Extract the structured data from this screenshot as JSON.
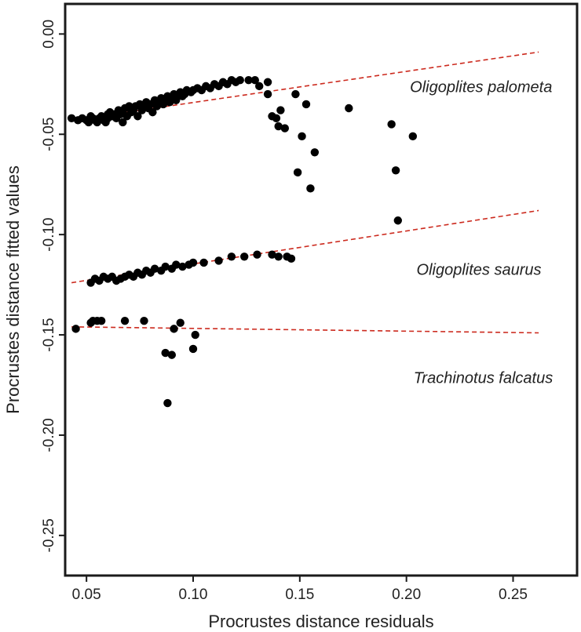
{
  "chart_data": {
    "type": "scatter",
    "xlabel": "Procrustes distance residuals",
    "ylabel": "Procrustes distance fitted values",
    "xlim": [
      0.04,
      0.28
    ],
    "ylim": [
      -0.27,
      0.015
    ],
    "x_ticks": [
      0.05,
      0.1,
      0.15,
      0.2,
      0.25
    ],
    "x_tick_labels": [
      "0.05",
      "0.10",
      "0.15",
      "0.20",
      "0.25"
    ],
    "y_ticks": [
      0.0,
      -0.05,
      -0.1,
      -0.15,
      -0.2,
      -0.25
    ],
    "y_tick_labels": [
      "0.00",
      "-0.05",
      "-0.10",
      "-0.15",
      "-0.20",
      "-0.25"
    ],
    "grid": false,
    "point_color": "#000000",
    "line_color": "#cc2a1e",
    "annotations": [
      {
        "text": "Oligoplites palometa",
        "x": 0.235,
        "y": -0.027
      },
      {
        "text": "Oligoplites saurus",
        "x": 0.234,
        "y": -0.118
      },
      {
        "text": "Trachinotus falcatus",
        "x": 0.236,
        "y": -0.172
      }
    ],
    "series": [
      {
        "points": [
          [
            0.043,
            -0.042
          ],
          [
            0.046,
            -0.043
          ],
          [
            0.048,
            -0.042
          ],
          [
            0.05,
            -0.043
          ],
          [
            0.051,
            -0.044
          ],
          [
            0.052,
            -0.041
          ],
          [
            0.053,
            -0.042
          ],
          [
            0.054,
            -0.043
          ],
          [
            0.055,
            -0.044
          ],
          [
            0.056,
            -0.042
          ],
          [
            0.057,
            -0.041
          ],
          [
            0.058,
            -0.043
          ],
          [
            0.059,
            -0.044
          ],
          [
            0.06,
            -0.04
          ],
          [
            0.06,
            -0.042
          ],
          [
            0.061,
            -0.039
          ],
          [
            0.062,
            -0.041
          ],
          [
            0.063,
            -0.04
          ],
          [
            0.064,
            -0.042
          ],
          [
            0.065,
            -0.038
          ],
          [
            0.066,
            -0.04
          ],
          [
            0.067,
            -0.044
          ],
          [
            0.067,
            -0.039
          ],
          [
            0.068,
            -0.037
          ],
          [
            0.069,
            -0.041
          ],
          [
            0.07,
            -0.036
          ],
          [
            0.071,
            -0.039
          ],
          [
            0.072,
            -0.038
          ],
          [
            0.073,
            -0.036
          ],
          [
            0.074,
            -0.041
          ],
          [
            0.075,
            -0.035
          ],
          [
            0.076,
            -0.038
          ],
          [
            0.077,
            -0.036
          ],
          [
            0.078,
            -0.034
          ],
          [
            0.079,
            -0.037
          ],
          [
            0.08,
            -0.035
          ],
          [
            0.081,
            -0.039
          ],
          [
            0.082,
            -0.033
          ],
          [
            0.083,
            -0.036
          ],
          [
            0.084,
            -0.034
          ],
          [
            0.085,
            -0.032
          ],
          [
            0.086,
            -0.035
          ],
          [
            0.087,
            -0.033
          ],
          [
            0.088,
            -0.031
          ],
          [
            0.089,
            -0.034
          ],
          [
            0.09,
            -0.032
          ],
          [
            0.091,
            -0.03
          ],
          [
            0.092,
            -0.033
          ],
          [
            0.093,
            -0.031
          ],
          [
            0.094,
            -0.029
          ],
          [
            0.095,
            -0.031
          ],
          [
            0.096,
            -0.03
          ],
          [
            0.097,
            -0.028
          ],
          [
            0.099,
            -0.029
          ],
          [
            0.1,
            -0.028
          ],
          [
            0.102,
            -0.027
          ],
          [
            0.104,
            -0.028
          ],
          [
            0.106,
            -0.026
          ],
          [
            0.108,
            -0.027
          ],
          [
            0.11,
            -0.025
          ],
          [
            0.112,
            -0.026
          ],
          [
            0.114,
            -0.024
          ],
          [
            0.116,
            -0.025
          ],
          [
            0.118,
            -0.023
          ],
          [
            0.12,
            -0.024
          ],
          [
            0.122,
            -0.023
          ],
          [
            0.126,
            -0.023
          ],
          [
            0.129,
            -0.023
          ],
          [
            0.131,
            -0.026
          ],
          [
            0.135,
            -0.024
          ],
          [
            0.135,
            -0.03
          ],
          [
            0.137,
            -0.041
          ],
          [
            0.139,
            -0.042
          ],
          [
            0.14,
            -0.046
          ],
          [
            0.141,
            -0.038
          ],
          [
            0.143,
            -0.047
          ],
          [
            0.148,
            -0.03
          ],
          [
            0.149,
            -0.069
          ],
          [
            0.151,
            -0.051
          ],
          [
            0.153,
            -0.035
          ],
          [
            0.155,
            -0.077
          ],
          [
            0.157,
            -0.059
          ],
          [
            0.173,
            -0.037
          ],
          [
            0.193,
            -0.045
          ],
          [
            0.195,
            -0.068
          ],
          [
            0.196,
            -0.093
          ],
          [
            0.203,
            -0.051
          ]
        ],
        "fit": [
          [
            0.043,
            -0.043
          ],
          [
            0.262,
            -0.009
          ]
        ]
      },
      {
        "points": [
          [
            0.052,
            -0.124
          ],
          [
            0.054,
            -0.122
          ],
          [
            0.056,
            -0.123
          ],
          [
            0.058,
            -0.121
          ],
          [
            0.06,
            -0.122
          ],
          [
            0.062,
            -0.121
          ],
          [
            0.064,
            -0.123
          ],
          [
            0.066,
            -0.122
          ],
          [
            0.068,
            -0.121
          ],
          [
            0.07,
            -0.12
          ],
          [
            0.072,
            -0.121
          ],
          [
            0.074,
            -0.119
          ],
          [
            0.076,
            -0.12
          ],
          [
            0.078,
            -0.118
          ],
          [
            0.08,
            -0.119
          ],
          [
            0.082,
            -0.117
          ],
          [
            0.085,
            -0.118
          ],
          [
            0.087,
            -0.116
          ],
          [
            0.09,
            -0.117
          ],
          [
            0.092,
            -0.115
          ],
          [
            0.095,
            -0.116
          ],
          [
            0.098,
            -0.115
          ],
          [
            0.1,
            -0.114
          ],
          [
            0.105,
            -0.114
          ],
          [
            0.112,
            -0.113
          ],
          [
            0.118,
            -0.111
          ],
          [
            0.124,
            -0.111
          ],
          [
            0.13,
            -0.11
          ],
          [
            0.137,
            -0.11
          ],
          [
            0.14,
            -0.111
          ],
          [
            0.144,
            -0.111
          ],
          [
            0.146,
            -0.112
          ]
        ],
        "fit": [
          [
            0.043,
            -0.124
          ],
          [
            0.262,
            -0.088
          ]
        ]
      },
      {
        "points": [
          [
            0.045,
            -0.147
          ],
          [
            0.052,
            -0.144
          ],
          [
            0.053,
            -0.143
          ],
          [
            0.055,
            -0.143
          ],
          [
            0.057,
            -0.143
          ],
          [
            0.068,
            -0.143
          ],
          [
            0.077,
            -0.143
          ],
          [
            0.087,
            -0.159
          ],
          [
            0.088,
            -0.184
          ],
          [
            0.09,
            -0.16
          ],
          [
            0.091,
            -0.147
          ],
          [
            0.094,
            -0.144
          ],
          [
            0.1,
            -0.157
          ],
          [
            0.101,
            -0.15
          ]
        ],
        "fit": [
          [
            0.043,
            -0.146
          ],
          [
            0.262,
            -0.149
          ]
        ]
      }
    ]
  }
}
